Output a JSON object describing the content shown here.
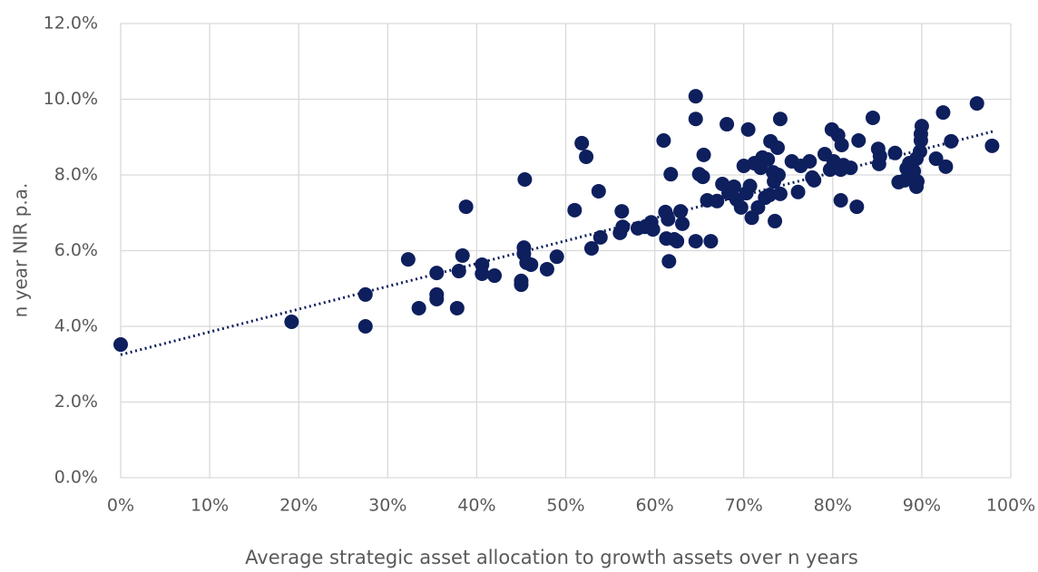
{
  "chart_data": {
    "type": "scatter",
    "x_label": "Average strategic asset allocation to growth assets over n years",
    "y_label": "n year NIR p.a.",
    "color": "#0e1f5e",
    "grid": true,
    "xlim": [
      0,
      100
    ],
    "ylim": [
      0,
      12
    ],
    "xticks": [
      {
        "value": 0,
        "label": "0%"
      },
      {
        "value": 10,
        "label": "10%"
      },
      {
        "value": 20,
        "label": "20%"
      },
      {
        "value": 30,
        "label": "30%"
      },
      {
        "value": 40,
        "label": "40%"
      },
      {
        "value": 50,
        "label": "50%"
      },
      {
        "value": 60,
        "label": "60%"
      },
      {
        "value": 70,
        "label": "70%"
      },
      {
        "value": 80,
        "label": "80%"
      },
      {
        "value": 90,
        "label": "90%"
      },
      {
        "value": 100,
        "label": "100%"
      }
    ],
    "yticks": [
      {
        "value": 0,
        "label": "0.0%"
      },
      {
        "value": 2,
        "label": "2.0%"
      },
      {
        "value": 4,
        "label": "4.0%"
      },
      {
        "value": 6,
        "label": "6.0%"
      },
      {
        "value": 8,
        "label": "8.0%"
      },
      {
        "value": 10,
        "label": "10.0%"
      },
      {
        "value": 12,
        "label": "12.0%"
      }
    ],
    "x": [
      0,
      19.2,
      27.5,
      27.5,
      32.3,
      33.5,
      35.5,
      35.5,
      35.5,
      37.8,
      38.0,
      38.4,
      38.8,
      40.6,
      40.6,
      42.0,
      45.0,
      45.0,
      45.3,
      45.3,
      45.4,
      45.6,
      46.1,
      47.9,
      49.0,
      51.0,
      51.8,
      52.3,
      52.9,
      53.7,
      53.9,
      56.1,
      56.3,
      56.4,
      58.1,
      58.9,
      59.6,
      59.8,
      61.0,
      61.2,
      61.3,
      61.5,
      61.6,
      61.8,
      62.2,
      62.5,
      62.9,
      63.1,
      64.6,
      64.6,
      64.6,
      65.0,
      65.4,
      65.5,
      65.9,
      66.3,
      67.0,
      67.6,
      68.1,
      68.3,
      68.9,
      69.2,
      69.7,
      70.0,
      70.3,
      70.5,
      70.7,
      70.9,
      71.2,
      71.6,
      71.9,
      72.1,
      72.4,
      72.7,
      72.9,
      73.0,
      73.3,
      73.4,
      73.5,
      73.8,
      73.9,
      74.1,
      74.1,
      75.4,
      76.1,
      76.4,
      77.4,
      77.7,
      77.9,
      79.1,
      79.7,
      79.9,
      80.1,
      80.6,
      80.9,
      80.9,
      81.0,
      81.2,
      82.0,
      82.7,
      82.9,
      84.5,
      85.1,
      85.2,
      85.3,
      87.0,
      87.4,
      88.1,
      88.3,
      88.6,
      88.9,
      89.1,
      89.4,
      89.4,
      89.5,
      89.8,
      89.9,
      89.9,
      90.0,
      91.6,
      92.4,
      92.7,
      93.3,
      96.2,
      97.9
    ],
    "values": [
      3.52,
      4.12,
      4.84,
      4.0,
      5.77,
      4.48,
      5.41,
      4.84,
      4.72,
      4.48,
      5.46,
      5.87,
      7.16,
      5.63,
      5.39,
      5.34,
      5.2,
      5.1,
      6.08,
      5.92,
      7.88,
      5.68,
      5.63,
      5.51,
      5.84,
      7.07,
      8.84,
      8.48,
      6.06,
      7.57,
      6.35,
      6.47,
      7.04,
      6.63,
      6.59,
      6.63,
      6.75,
      6.56,
      8.91,
      7.02,
      6.32,
      6.83,
      5.72,
      8.02,
      6.3,
      6.25,
      7.04,
      6.71,
      10.08,
      9.48,
      6.25,
      8.02,
      7.95,
      8.53,
      7.33,
      6.25,
      7.31,
      7.76,
      9.34,
      7.52,
      7.69,
      7.35,
      7.14,
      8.24,
      7.52,
      9.2,
      7.71,
      6.87,
      8.31,
      7.14,
      8.19,
      8.46,
      7.4,
      8.41,
      7.47,
      8.89,
      8.07,
      7.83,
      6.78,
      8.72,
      8.0,
      9.48,
      7.5,
      8.36,
      7.55,
      8.24,
      8.36,
      7.93,
      7.86,
      8.55,
      8.14,
      9.2,
      8.36,
      9.05,
      8.14,
      7.33,
      8.79,
      8.26,
      8.19,
      7.16,
      8.91,
      9.51,
      8.69,
      8.29,
      8.5,
      8.58,
      7.81,
      7.86,
      8.17,
      8.31,
      7.9,
      8.1,
      8.43,
      7.69,
      7.83,
      8.62,
      8.91,
      9.08,
      9.29,
      8.43,
      9.65,
      8.22,
      8.89,
      9.89,
      8.77
    ],
    "trendline": {
      "x": [
        0,
        98
      ],
      "y": [
        3.25,
        9.15
      ]
    }
  }
}
